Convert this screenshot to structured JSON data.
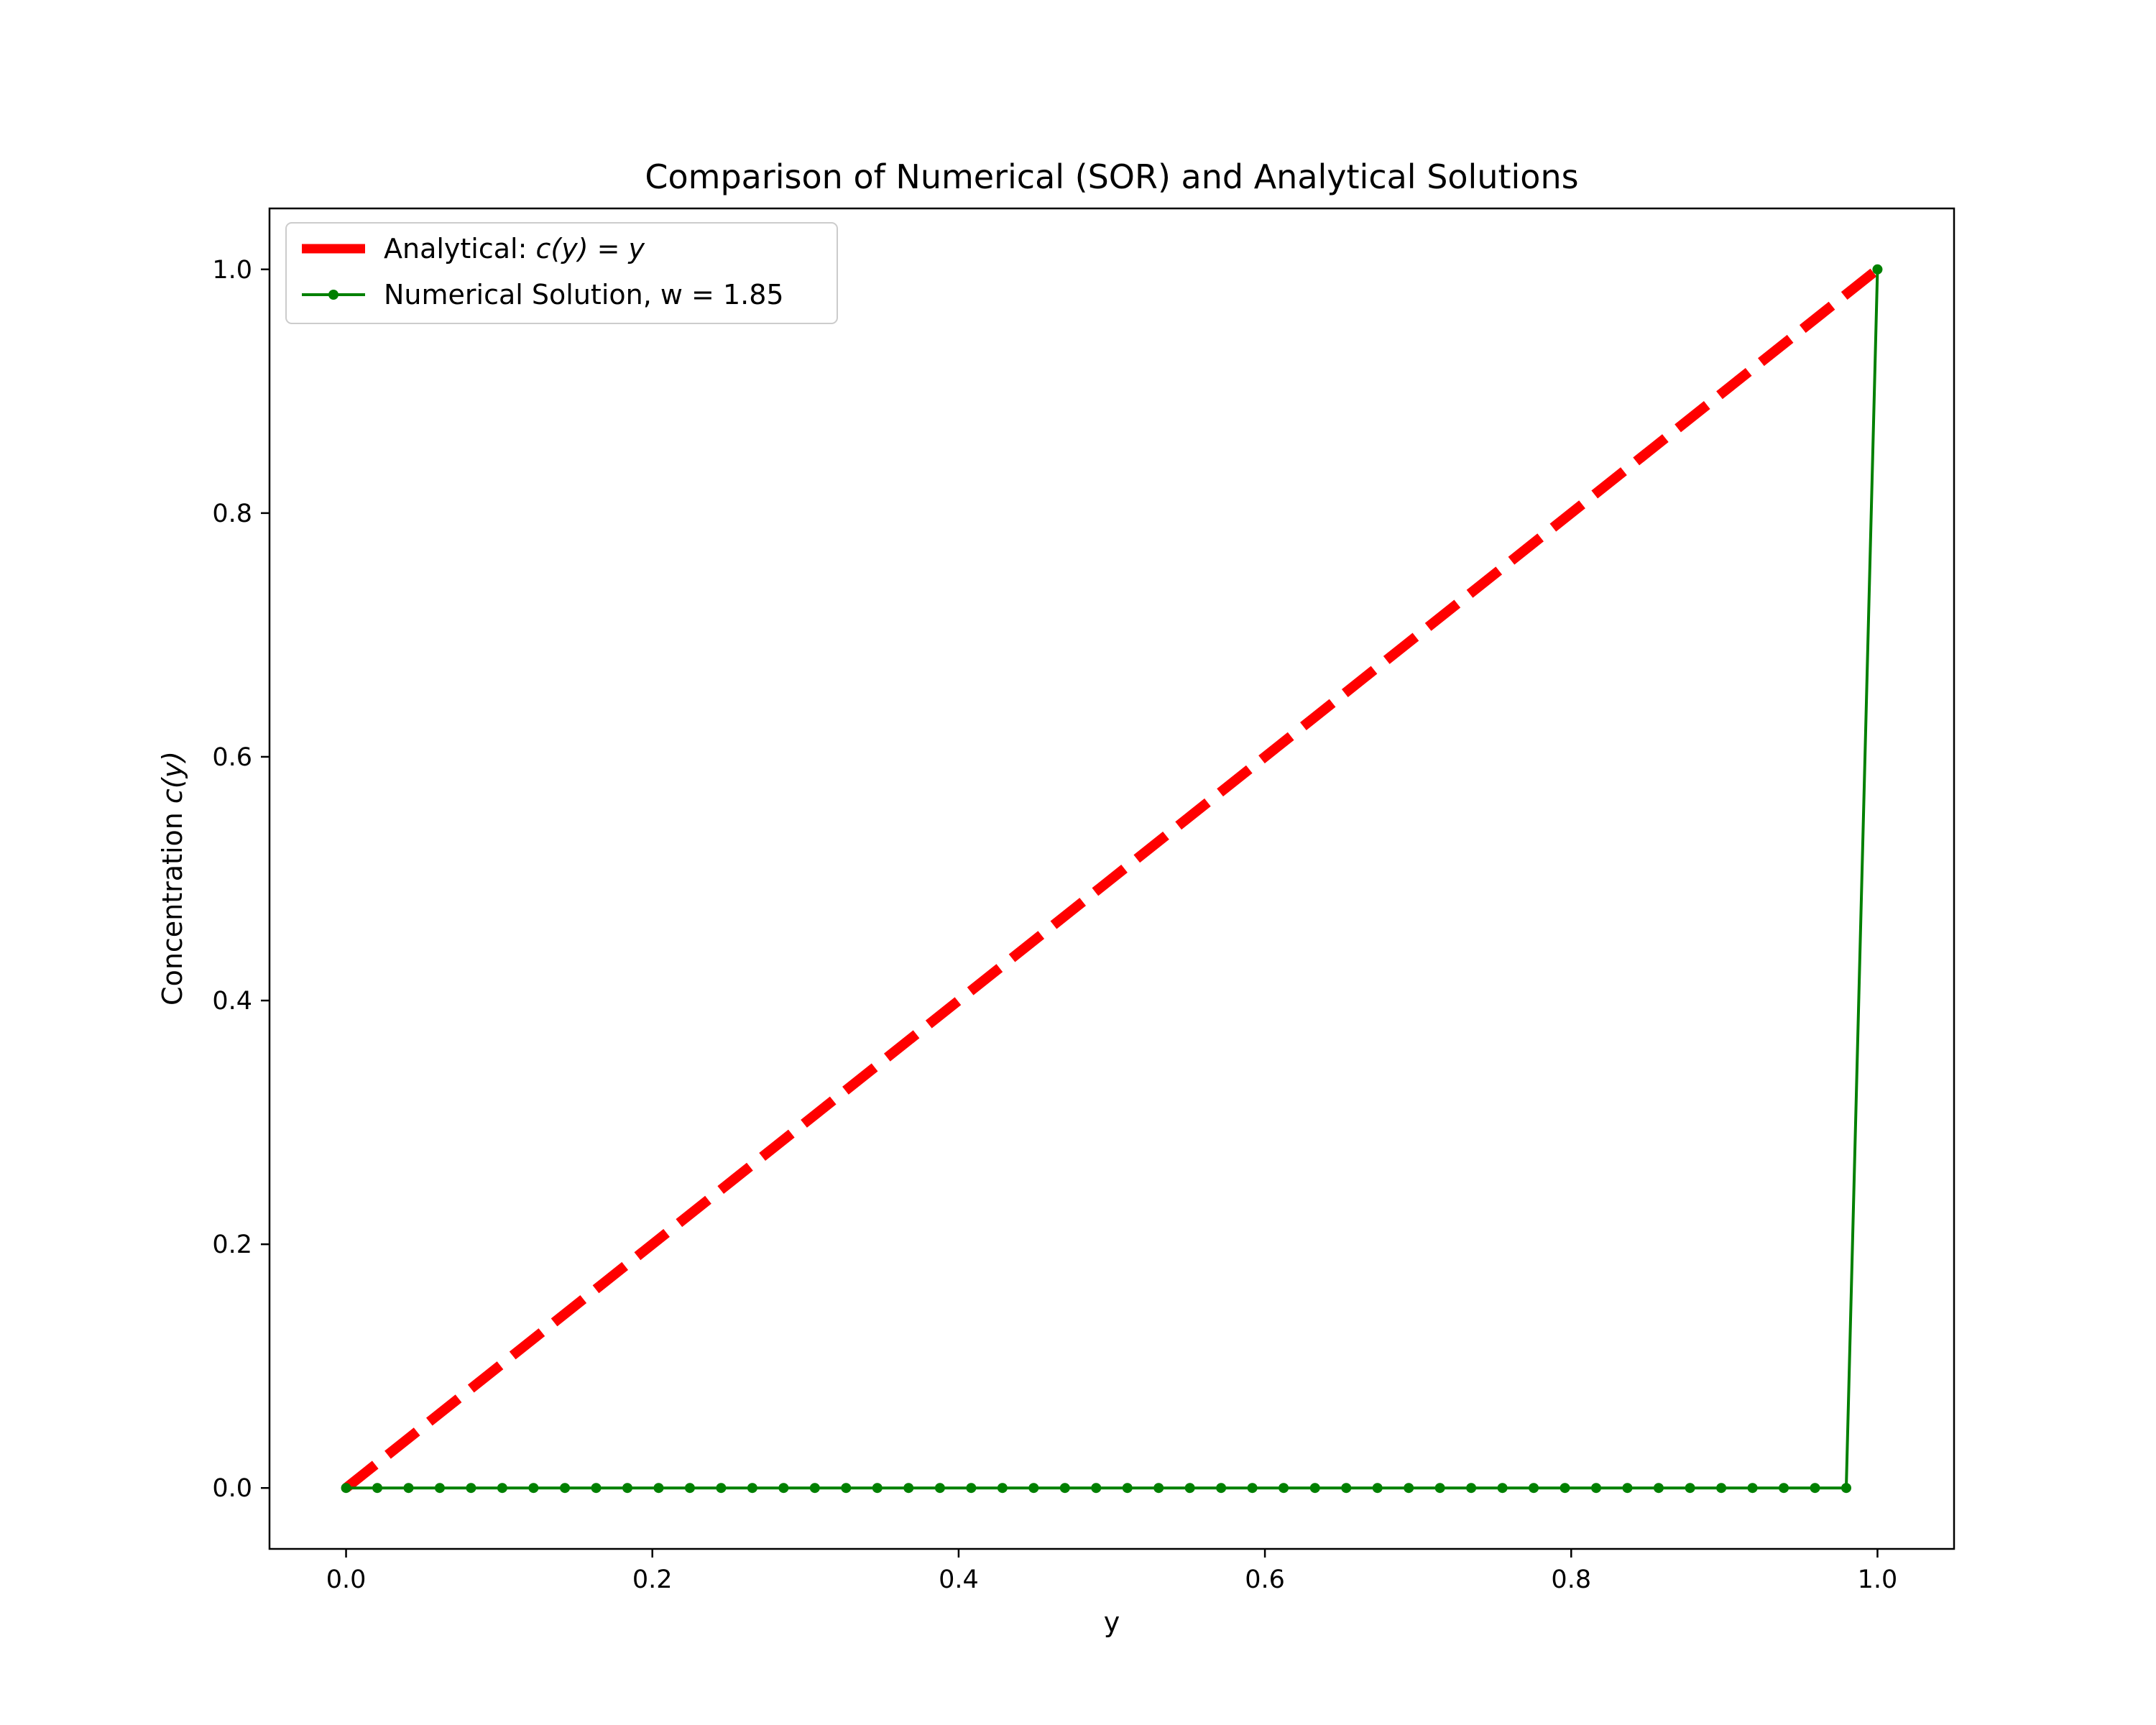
{
  "chart_data": {
    "type": "line",
    "title": "Comparison of Numerical (SOR) and Analytical Solutions",
    "xlabel": "y",
    "ylabel_prefix": "Concentration ",
    "ylabel_math": "c(y)",
    "xlim": [
      -0.05,
      1.05
    ],
    "ylim": [
      -0.05,
      1.05
    ],
    "xticks": [
      0.0,
      0.2,
      0.4,
      0.6,
      0.8,
      1.0
    ],
    "xtick_labels": [
      "0.0",
      "0.2",
      "0.4",
      "0.6",
      "0.8",
      "1.0"
    ],
    "yticks": [
      0.0,
      0.2,
      0.4,
      0.6,
      0.8,
      1.0
    ],
    "ytick_labels": [
      "0.0",
      "0.2",
      "0.4",
      "0.6",
      "0.8",
      "1.0"
    ],
    "grid": false,
    "legend_position": "top-left",
    "series": [
      {
        "name_prefix": "Analytical: ",
        "name_math": "c(y) = y",
        "style": "dashed",
        "color": "#ff0000",
        "x": [
          0.0,
          1.0
        ],
        "y": [
          0.0,
          1.0
        ]
      },
      {
        "name": "Numerical Solution, w = 1.85",
        "style": "solid-markers",
        "color": "#008000",
        "x": [
          0.0,
          0.0204,
          0.0408,
          0.0612,
          0.0816,
          0.102,
          0.1224,
          0.1429,
          0.1633,
          0.1837,
          0.2041,
          0.2245,
          0.2449,
          0.2653,
          0.2857,
          0.3061,
          0.3265,
          0.3469,
          0.3673,
          0.3878,
          0.4082,
          0.4286,
          0.449,
          0.4694,
          0.4898,
          0.5102,
          0.5306,
          0.551,
          0.5714,
          0.5918,
          0.6122,
          0.6327,
          0.6531,
          0.6735,
          0.6939,
          0.7143,
          0.7347,
          0.7551,
          0.7755,
          0.7959,
          0.8163,
          0.8367,
          0.8571,
          0.8776,
          0.898,
          0.9184,
          0.9388,
          0.9592,
          0.9796,
          1.0
        ],
        "y": [
          0,
          0,
          0,
          0,
          0,
          0,
          0,
          0,
          0,
          0,
          0,
          0,
          0,
          0,
          0,
          0,
          0,
          0,
          0,
          0,
          0,
          0,
          0,
          0,
          0,
          0,
          0,
          0,
          0,
          0,
          0,
          0,
          0,
          0,
          0,
          0,
          0,
          0,
          0,
          0,
          0,
          0,
          0,
          0,
          0,
          0,
          0,
          0,
          0,
          1.0
        ]
      }
    ]
  }
}
